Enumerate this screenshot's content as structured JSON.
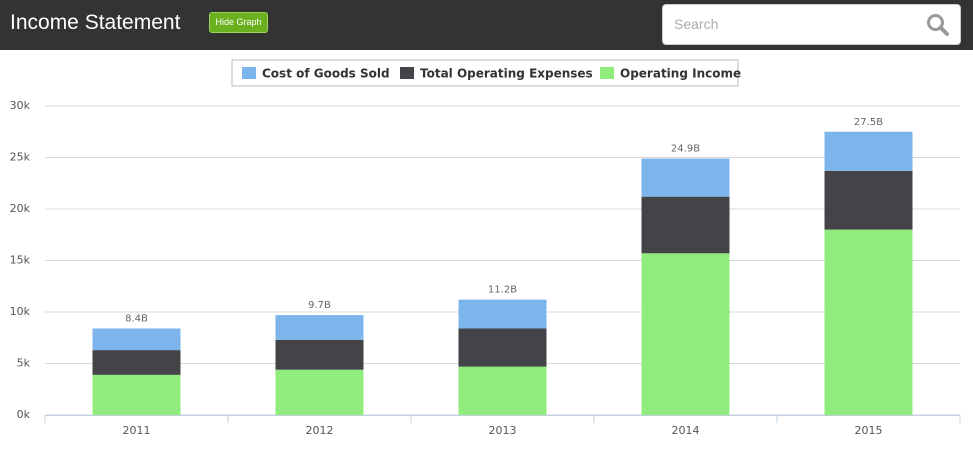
{
  "header": {
    "title": "Income Statement",
    "button": "Hide Graph",
    "search_placeholder": "Search"
  },
  "chart_data": {
    "type": "stacked_bar",
    "categories": [
      "2011",
      "2012",
      "2013",
      "2014",
      "2015"
    ],
    "series": [
      {
        "name": "Cost of Goods Sold",
        "color": "#7cb5ec",
        "values": [
          2100,
          2400,
          2800,
          3700,
          3800
        ]
      },
      {
        "name": "Total Operating Expenses",
        "color": "#434348",
        "values": [
          2400,
          2900,
          3700,
          5500,
          5700
        ]
      },
      {
        "name": "Operating Income",
        "color": "#90ed7d",
        "values": [
          3900,
          4400,
          4700,
          15700,
          18000
        ]
      }
    ],
    "totals": {
      "values": [
        8400,
        9700,
        11200,
        24900,
        27500
      ],
      "value_labels": [
        "8.4B",
        "9.7B",
        "11.2B",
        "24.9B",
        "27.5B"
      ]
    },
    "ylim": [
      0,
      30000
    ],
    "yticks": [
      {
        "value": 0,
        "label": "0k"
      },
      {
        "value": 5000,
        "label": "5k"
      },
      {
        "value": 10000,
        "label": "10k"
      },
      {
        "value": 15000,
        "label": "15k"
      },
      {
        "value": 20000,
        "label": "20k"
      },
      {
        "value": 25000,
        "label": "25k"
      },
      {
        "value": 30000,
        "label": "30k"
      }
    ],
    "grid": true,
    "legend": "top"
  }
}
